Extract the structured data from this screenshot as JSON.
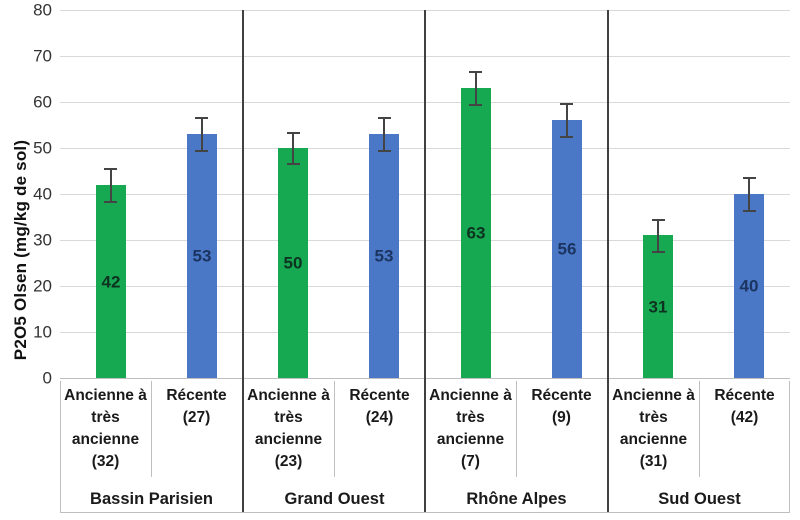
{
  "chart_data": {
    "type": "bar",
    "title": "",
    "ylabel": "P2O5 Olsen (mg/kg de sol)",
    "xlabel": "",
    "ylim": [
      0,
      80
    ],
    "ytick_step": 10,
    "yticks": [
      0,
      10,
      20,
      30,
      40,
      50,
      60,
      70,
      80
    ],
    "grid": true,
    "legend": "none",
    "error_bars": true,
    "groups": [
      {
        "region": "Bassin Parisien",
        "bars": [
          {
            "label": "Ancienne à très ancienne (32)",
            "series": "ancienne",
            "value": 42,
            "error": 3.7
          },
          {
            "label": "Récente (27)",
            "series": "recente",
            "value": 53,
            "error": 3.7
          }
        ]
      },
      {
        "region": "Grand Ouest",
        "bars": [
          {
            "label": "Ancienne à très ancienne (23)",
            "series": "ancienne",
            "value": 50,
            "error": 3.5
          },
          {
            "label": "Récente (24)",
            "series": "recente",
            "value": 53,
            "error": 3.7
          }
        ]
      },
      {
        "region": "Rhône Alpes",
        "bars": [
          {
            "label": "Ancienne à très ancienne (7)",
            "series": "ancienne",
            "value": 63,
            "error": 3.7
          },
          {
            "label": "Récente (9)",
            "series": "recente",
            "value": 56,
            "error": 3.7
          }
        ]
      },
      {
        "region": "Sud Ouest",
        "bars": [
          {
            "label": "Ancienne à très ancienne (31)",
            "series": "ancienne",
            "value": 31,
            "error": 3.6
          },
          {
            "label": "Récente (42)",
            "series": "recente",
            "value": 40,
            "error": 3.7
          }
        ]
      }
    ],
    "colors": {
      "ancienne": "#17a952",
      "recente": "#4a78c6",
      "ancienne_label": "#0d3320",
      "recente_label": "#1c3461",
      "gridline": "#d9d9d9",
      "axis_line": "#bfbfbf",
      "region_divider": "#404040",
      "error_bar": "#444444"
    }
  }
}
